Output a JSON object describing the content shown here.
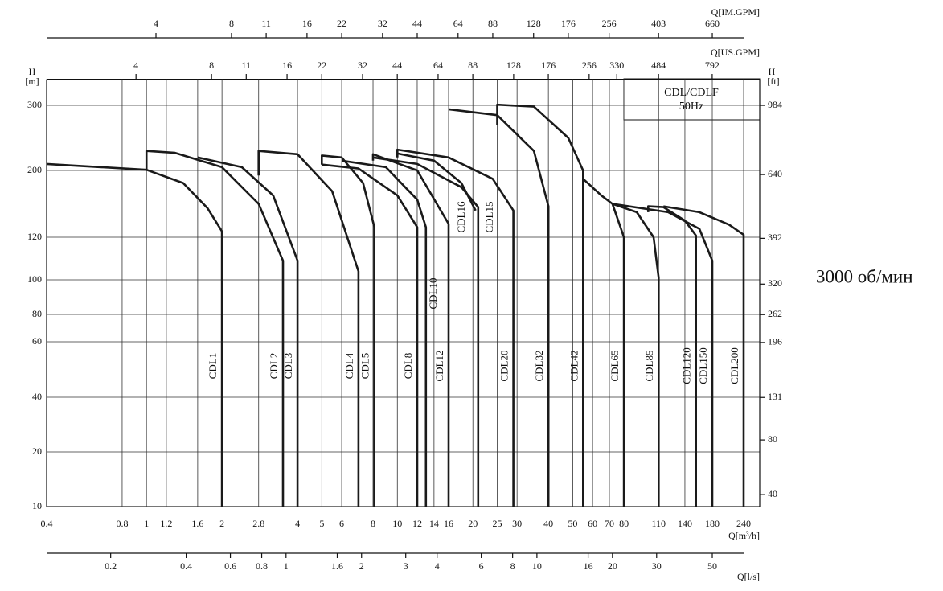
{
  "chart_data": {
    "type": "line",
    "annotations": [
      "CDL/CDLF",
      "50Hz",
      "3000 об/мин"
    ],
    "xlabel": "Q[m³/h]",
    "ylabel": [
      "H",
      "[m]"
    ],
    "y2label": [
      "H",
      "[ft]"
    ],
    "x_log": true,
    "grid": true,
    "xlim": [
      0.4,
      240
    ],
    "xticks": [
      0.4,
      0.8,
      1,
      1.2,
      1.6,
      2,
      2.8,
      4,
      5,
      6,
      8,
      10,
      12,
      14,
      16,
      20,
      25,
      30,
      40,
      50,
      60,
      70,
      80,
      110,
      140,
      180,
      240
    ],
    "ylim": [
      10,
      340
    ],
    "yticks": [
      10,
      20,
      40,
      60,
      80,
      100,
      120,
      200,
      300
    ],
    "y2lim": [
      32.8,
      1115.5
    ],
    "y2ticks": [
      40,
      80,
      131,
      196,
      262,
      320,
      392,
      640,
      984
    ],
    "x_axes": [
      {
        "label": "Q[IM.GPM]",
        "xlim": [
          1.47,
          880
        ],
        "ticks": [
          4,
          8,
          11,
          16,
          22,
          32,
          44,
          64,
          88,
          128,
          176,
          256,
          403,
          660
        ]
      },
      {
        "label": "Q[US.GPM]",
        "xlim": [
          1.76,
          1057
        ],
        "ticks": [
          4,
          8,
          11,
          16,
          22,
          32,
          44,
          64,
          88,
          128,
          176,
          256,
          330,
          484,
          792
        ]
      },
      {
        "label": "Q[l/s]",
        "xlim": [
          0.111,
          66.7
        ],
        "ticks": [
          0.2,
          0.4,
          0.6,
          0.8,
          1,
          1.6,
          2,
          3,
          4,
          6,
          8,
          10,
          16,
          20,
          30,
          50
        ]
      }
    ],
    "series": [
      {
        "name": "CDL1",
        "color": "#1a1a1a",
        "x": [
          0.4,
          1,
          1.4,
          1.75,
          2,
          2
        ],
        "values": [
          210,
          201,
          185,
          155,
          127,
          10
        ]
      },
      {
        "name": "CDL2",
        "color": "#1a1a1a",
        "x": [
          1,
          1,
          1.3,
          2,
          2.8,
          3.5,
          3.5
        ],
        "values": [
          201,
          230,
          227,
          205,
          160,
          109,
          10
        ]
      },
      {
        "name": "CDL3",
        "color": "#1a1a1a",
        "x": [
          1.6,
          2.4,
          3.2,
          4,
          4
        ],
        "values": [
          220,
          205,
          170,
          109,
          10
        ]
      },
      {
        "name": "CDL4",
        "color": "#1a1a1a",
        "x": [
          2.8,
          2.8,
          4,
          5.5,
          7,
          7
        ],
        "values": [
          194,
          230,
          225,
          175,
          104,
          10
        ]
      },
      {
        "name": "CDL5",
        "color": "#1a1a1a",
        "x": [
          5,
          5,
          6,
          7.3,
          8.1,
          8.1
        ],
        "values": [
          209,
          223,
          220,
          185,
          132,
          10
        ]
      },
      {
        "name": "CDL8",
        "color": "#1a1a1a",
        "x": [
          5,
          7,
          10,
          12,
          12
        ],
        "values": [
          209,
          203,
          170,
          132,
          10
        ]
      },
      {
        "name": "CDL10",
        "color": "#1a1a1a",
        "x": [
          6,
          9,
          12,
          13,
          13
        ],
        "values": [
          215,
          205,
          165,
          132,
          10
        ]
      },
      {
        "name": "CDL12",
        "color": "#1a1a1a",
        "x": [
          8,
          8,
          12,
          16,
          16
        ],
        "values": [
          215,
          225,
          200,
          136,
          10
        ]
      },
      {
        "name": "CDL15",
        "color": "#1a1a1a",
        "x": [
          8,
          12,
          18,
          21,
          21
        ],
        "values": [
          220,
          210,
          180,
          156,
          10
        ]
      },
      {
        "name": "CDL16",
        "color": "#1a1a1a",
        "x": [
          10,
          14,
          18,
          20.5
        ],
        "values": [
          226,
          215,
          185,
          152
        ]
      },
      {
        "name": "CDL20",
        "color": "#1a1a1a",
        "x": [
          10,
          10,
          16,
          24,
          29,
          29
        ],
        "values": [
          220,
          232,
          220,
          190,
          152,
          10
        ]
      },
      {
        "name": "CDL32",
        "color": "#1a1a1a",
        "x": [
          16,
          25,
          35,
          40,
          40
        ],
        "values": [
          294,
          285,
          230,
          157,
          10
        ]
      },
      {
        "name": "CDL42",
        "color": "#1a1a1a",
        "x": [
          25,
          25,
          35,
          48,
          55,
          55
        ],
        "values": [
          270,
          301,
          298,
          250,
          200,
          10
        ]
      },
      {
        "name": "CDL65",
        "color": "#1a1a1a",
        "x": [
          55,
          65,
          72,
          80,
          80
        ],
        "values": [
          190,
          170,
          160,
          120,
          10
        ]
      },
      {
        "name": "CDL85",
        "color": "#1a1a1a",
        "x": [
          72,
          90,
          105,
          110,
          110
        ],
        "values": [
          160,
          150,
          120,
          101,
          10
        ]
      },
      {
        "name": "CDL120",
        "color": "#1a1a1a",
        "x": [
          100,
          100,
          115,
          140,
          155,
          155
        ],
        "values": [
          150,
          157,
          156,
          140,
          122,
          10
        ]
      },
      {
        "name": "CDL150",
        "color": "#1a1a1a",
        "x": [
          72,
          120,
          160,
          180,
          180
        ],
        "values": [
          160,
          150,
          130,
          109,
          10
        ]
      },
      {
        "name": "CDL200",
        "color": "#1a1a1a",
        "x": [
          115,
          160,
          210,
          240,
          240
        ],
        "values": [
          157,
          150,
          135,
          123,
          10
        ]
      }
    ]
  }
}
